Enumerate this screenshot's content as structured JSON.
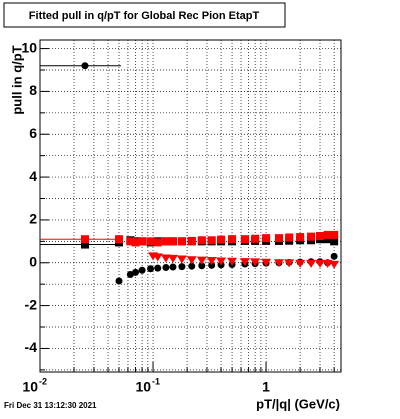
{
  "chart_data": {
    "type": "scatter",
    "title": "Fitted pull in q/pT for Global Rec Pion EtapT",
    "xlabel": "pT/|q| (GeV/c)",
    "ylabel": "pull in q/pT",
    "footer": "Fri Dec 31 13:12:30 2021",
    "xscale": "log",
    "xlim": [
      0.01,
      4.6
    ],
    "ylim": [
      -5.1,
      10.4
    ],
    "grid": true,
    "xticks": [
      {
        "value": 0.01,
        "label": "10",
        "exponent": "-2"
      },
      {
        "value": 0.1,
        "label": "10",
        "exponent": "-1"
      },
      1
    ],
    "xminorticks": [
      0.02,
      0.03,
      0.04,
      0.05,
      0.06,
      0.07,
      0.08,
      0.09,
      0.2,
      0.3,
      0.4,
      0.5,
      0.6,
      0.7,
      0.8,
      0.9,
      2,
      3,
      4
    ],
    "yticks": [
      -4,
      -2,
      0,
      2,
      4,
      6,
      8,
      10
    ],
    "yminorticks": [
      -5,
      -3,
      -1,
      1,
      3,
      5,
      7,
      9
    ],
    "series": [
      {
        "color": "#000000",
        "marker": "circle",
        "x": [
          0.025,
          0.05,
          0.063,
          0.07,
          0.08,
          0.095,
          0.11,
          0.13,
          0.15,
          0.18,
          0.22,
          0.27,
          0.33,
          0.4,
          0.5,
          0.65,
          0.8,
          1.0,
          1.3,
          1.6,
          2.0,
          2.5,
          3.0,
          3.5,
          4.0
        ],
        "values": [
          9.2,
          -0.85,
          -0.55,
          -0.45,
          -0.35,
          -0.28,
          -0.25,
          -0.22,
          -0.2,
          -0.18,
          -0.16,
          -0.14,
          -0.12,
          -0.1,
          -0.08,
          -0.06,
          -0.04,
          -0.02,
          0,
          0.02,
          0.03,
          0.05,
          0.05,
          0.0,
          0.3
        ],
        "xerr": [
          [
            0.0095,
            0.052
          ]
        ]
      },
      {
        "color": "#000000",
        "marker": "square",
        "x": [
          0.025,
          0.05,
          0.063,
          0.07,
          0.08,
          0.095,
          0.11,
          0.13,
          0.15,
          0.18,
          0.22,
          0.27,
          0.33,
          0.4,
          0.5,
          0.65,
          0.8,
          1.0,
          1.3,
          1.6,
          2.0,
          2.5,
          3.0,
          3.5,
          4.0
        ],
        "values": [
          0.85,
          0.95,
          1.05,
          1.0,
          1.0,
          0.95,
          1.0,
          1.0,
          1.0,
          1.0,
          1.0,
          1.0,
          1.0,
          1.0,
          1.0,
          1.02,
          1.02,
          1.02,
          1.02,
          1.03,
          1.05,
          1.05,
          1.1,
          1.1,
          1.0
        ],
        "xerr": [
          [
            0.0095,
            0.052
          ]
        ]
      },
      {
        "color": "#ff0000",
        "marker": "square",
        "x": [
          0.025,
          0.05,
          0.063,
          0.07,
          0.08,
          0.095,
          0.11,
          0.13,
          0.15,
          0.18,
          0.22,
          0.27,
          0.33,
          0.4,
          0.5,
          0.65,
          0.8,
          1.0,
          1.3,
          1.6,
          2.0,
          2.5,
          3.0,
          3.5,
          4.0
        ],
        "values": [
          1.1,
          1.1,
          1.0,
          0.95,
          1.0,
          1.0,
          0.95,
          1.0,
          1.0,
          1.0,
          1.02,
          1.05,
          1.05,
          1.08,
          1.1,
          1.1,
          1.12,
          1.15,
          1.15,
          1.18,
          1.2,
          1.22,
          1.25,
          1.3,
          1.3
        ],
        "xerr": [
          [
            0.0095,
            0.052
          ]
        ]
      },
      {
        "color": "#ff0000",
        "marker": "triangle",
        "x": [
          0.1,
          0.11,
          0.13,
          0.15,
          0.18,
          0.22,
          0.27,
          0.33,
          0.4,
          0.5,
          0.65,
          0.8,
          1.0,
          1.3,
          1.6,
          2.0,
          2.5,
          3.0,
          3.5,
          4.0
        ],
        "values": [
          0.3,
          0.25,
          0.2,
          0.18,
          0.15,
          0.12,
          0.1,
          0.08,
          0.06,
          0.05,
          0.03,
          0.02,
          0.0,
          -0.02,
          -0.03,
          -0.05,
          -0.05,
          -0.05,
          -0.05,
          -0.1
        ]
      }
    ]
  }
}
